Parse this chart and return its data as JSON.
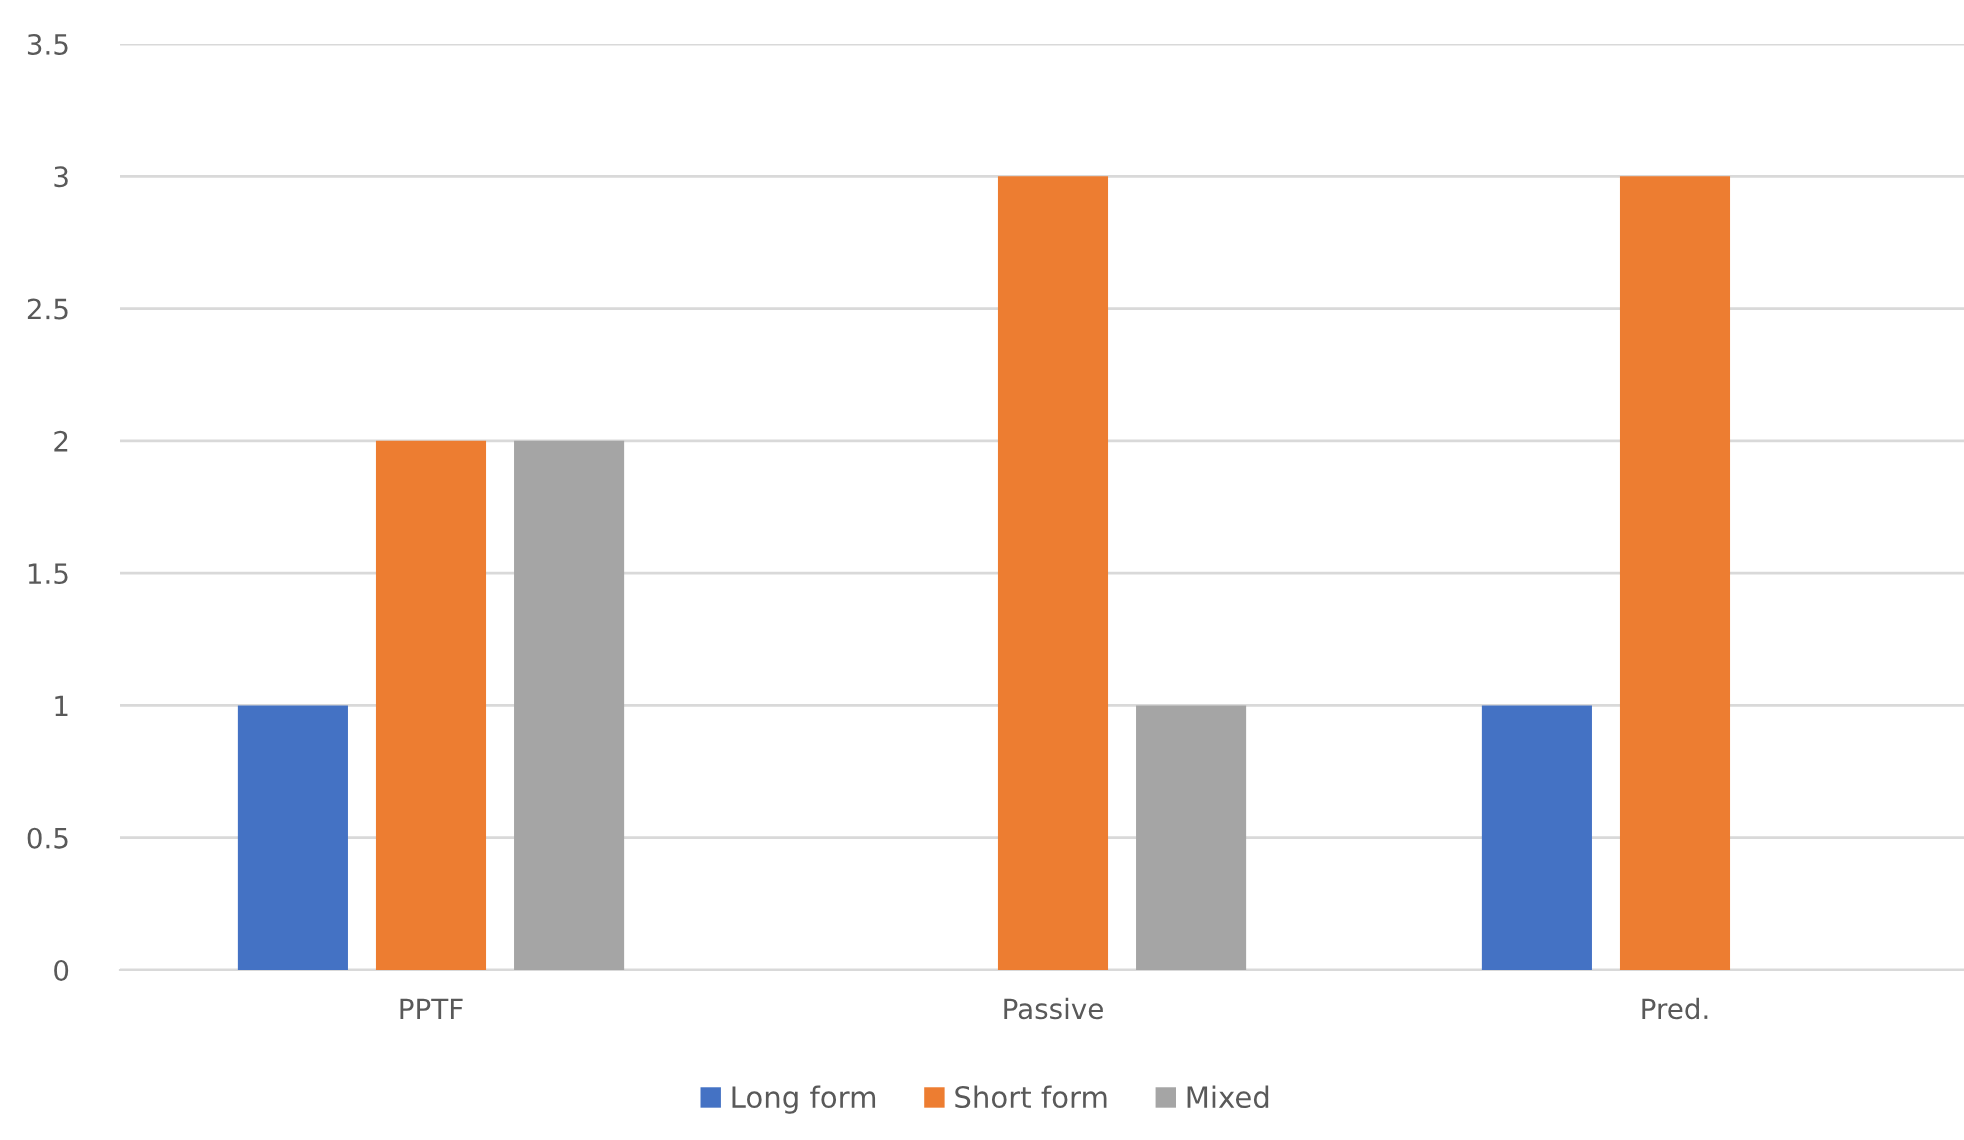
{
  "chart_data": {
    "type": "bar",
    "categories": [
      "PPTF",
      "Passive",
      "Pred."
    ],
    "series": [
      {
        "name": "Long form",
        "color": "#4472c4",
        "values": [
          1,
          null,
          1
        ]
      },
      {
        "name": "Short form",
        "color": "#ed7d31",
        "values": [
          2,
          3,
          3
        ]
      },
      {
        "name": "Mixed",
        "color": "#a5a5a5",
        "values": [
          2,
          1,
          null
        ]
      }
    ],
    "ylim": [
      0,
      3.5
    ],
    "yticks": [
      0,
      0.5,
      1,
      1.5,
      2,
      2.5,
      3,
      3.5
    ],
    "grid": "y",
    "legend": "bottom"
  }
}
